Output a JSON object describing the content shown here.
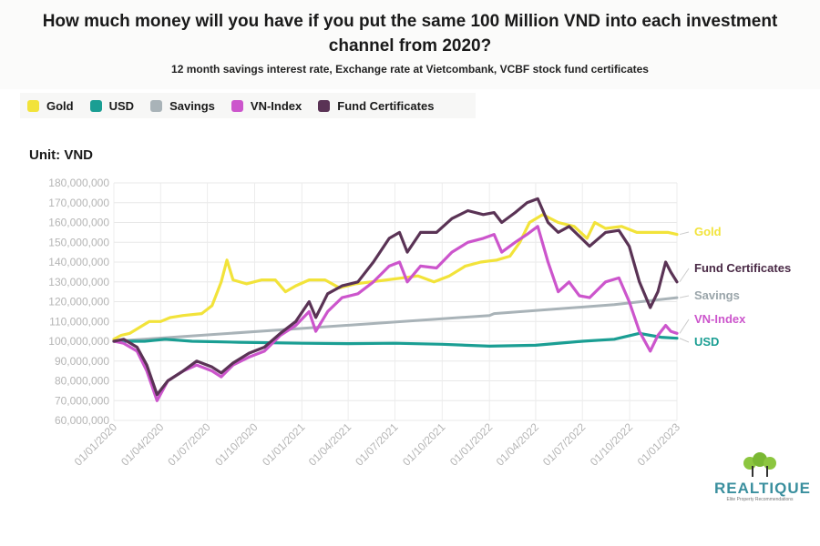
{
  "title": "How much money will you have if you put the same 100 Million VND into each investment channel from 2020?",
  "subtitle": "12 month savings interest rate, Exchange rate at Vietcombank, VCBF stock fund certificates",
  "unit_label": "Unit: VND",
  "logo": {
    "name": "REALTIQUE",
    "tagline": "Elite Property Recommendations"
  },
  "colors": {
    "gold": "#f2e33a",
    "usd": "#1a9e93",
    "savings": "#a9b3b8",
    "vnindex": "#cc55cc",
    "fund": "#5a3355"
  },
  "chart_data": {
    "type": "line",
    "title": "How much money will you have if you put the same 100 Million VND into each investment channel from 2020?",
    "ylabel": "Unit: VND",
    "ylim": [
      60000000,
      180000000
    ],
    "xlim": [
      "2020-01-01",
      "2023-01-01"
    ],
    "yticks": [
      {
        "value": 60000000,
        "label": "60,000,000"
      },
      {
        "value": 70000000,
        "label": "70,000,000"
      },
      {
        "value": 80000000,
        "label": "80,000,000"
      },
      {
        "value": 90000000,
        "label": "90,000,000"
      },
      {
        "value": 100000000,
        "label": "100,000,000"
      },
      {
        "value": 110000000,
        "label": "110,000,000"
      },
      {
        "value": 120000000,
        "label": "120,000,000"
      },
      {
        "value": 130000000,
        "label": "130,000,000"
      },
      {
        "value": 140000000,
        "label": "140,000,000"
      },
      {
        "value": 150000000,
        "label": "150,000,000"
      },
      {
        "value": 160000000,
        "label": "160,000,000"
      },
      {
        "value": 170000000,
        "label": "170,000,000"
      },
      {
        "value": 180000000,
        "label": "180,000,000"
      }
    ],
    "xticks": [
      {
        "value": "2020-01-01",
        "label": "01/01/2020"
      },
      {
        "value": "2020-04-01",
        "label": "01/04/2020"
      },
      {
        "value": "2020-07-01",
        "label": "01/07/2020"
      },
      {
        "value": "2020-10-01",
        "label": "01/10/2020"
      },
      {
        "value": "2021-01-01",
        "label": "01/01/2021"
      },
      {
        "value": "2021-04-01",
        "label": "01/04/2021"
      },
      {
        "value": "2021-07-01",
        "label": "01/07/2021"
      },
      {
        "value": "2021-10-01",
        "label": "01/10/2021"
      },
      {
        "value": "2022-01-01",
        "label": "01/01/2022"
      },
      {
        "value": "2022-04-01",
        "label": "01/04/2022"
      },
      {
        "value": "2022-07-01",
        "label": "01/07/2022"
      },
      {
        "value": "2022-10-01",
        "label": "01/10/2022"
      },
      {
        "value": "2023-01-01",
        "label": "01/01/2023"
      }
    ],
    "grid": true,
    "legend_position": "top-left",
    "series": [
      {
        "key": "gold",
        "name": "Gold",
        "color": "#f2e33a",
        "end_label": "Gold",
        "points": [
          [
            "2020-01-01",
            101000000
          ],
          [
            "2020-01-15",
            103000000
          ],
          [
            "2020-02-01",
            104000000
          ],
          [
            "2020-02-20",
            107000000
          ],
          [
            "2020-03-10",
            110000000
          ],
          [
            "2020-04-01",
            110000000
          ],
          [
            "2020-04-20",
            112000000
          ],
          [
            "2020-05-15",
            113000000
          ],
          [
            "2020-06-20",
            114000000
          ],
          [
            "2020-07-10",
            118000000
          ],
          [
            "2020-07-28",
            130000000
          ],
          [
            "2020-08-08",
            141000000
          ],
          [
            "2020-08-20",
            131000000
          ],
          [
            "2020-09-15",
            129000000
          ],
          [
            "2020-10-15",
            131000000
          ],
          [
            "2020-11-10",
            131000000
          ],
          [
            "2020-11-30",
            125000000
          ],
          [
            "2020-12-20",
            128000000
          ],
          [
            "2021-01-15",
            131000000
          ],
          [
            "2021-02-15",
            131000000
          ],
          [
            "2021-03-15",
            127000000
          ],
          [
            "2021-04-15",
            129000000
          ],
          [
            "2021-05-15",
            130000000
          ],
          [
            "2021-06-15",
            131000000
          ],
          [
            "2021-07-15",
            132000000
          ],
          [
            "2021-08-15",
            133000000
          ],
          [
            "2021-09-15",
            130000000
          ],
          [
            "2021-10-15",
            133000000
          ],
          [
            "2021-11-15",
            138000000
          ],
          [
            "2021-12-15",
            140000000
          ],
          [
            "2022-01-15",
            141000000
          ],
          [
            "2022-02-10",
            143000000
          ],
          [
            "2022-03-01",
            150000000
          ],
          [
            "2022-03-20",
            160000000
          ],
          [
            "2022-04-15",
            164000000
          ],
          [
            "2022-05-15",
            160000000
          ],
          [
            "2022-06-15",
            158000000
          ],
          [
            "2022-07-10",
            152000000
          ],
          [
            "2022-07-25",
            160000000
          ],
          [
            "2022-08-15",
            157000000
          ],
          [
            "2022-09-15",
            158000000
          ],
          [
            "2022-10-15",
            155000000
          ],
          [
            "2022-11-15",
            155000000
          ],
          [
            "2022-12-15",
            155000000
          ],
          [
            "2023-01-01",
            154000000
          ]
        ]
      },
      {
        "key": "usd",
        "name": "USD",
        "color": "#1a9e93",
        "end_label": "USD",
        "points": [
          [
            "2020-01-01",
            100000000
          ],
          [
            "2020-03-01",
            100000000
          ],
          [
            "2020-04-10",
            101000000
          ],
          [
            "2020-06-01",
            100000000
          ],
          [
            "2020-09-01",
            99500000
          ],
          [
            "2021-01-01",
            99000000
          ],
          [
            "2021-04-01",
            98800000
          ],
          [
            "2021-07-01",
            99000000
          ],
          [
            "2021-10-01",
            98500000
          ],
          [
            "2022-01-01",
            97500000
          ],
          [
            "2022-04-01",
            98000000
          ],
          [
            "2022-07-01",
            100000000
          ],
          [
            "2022-09-01",
            101000000
          ],
          [
            "2022-10-20",
            104000000
          ],
          [
            "2022-11-10",
            103000000
          ],
          [
            "2022-12-01",
            102000000
          ],
          [
            "2023-01-01",
            101500000
          ]
        ]
      },
      {
        "key": "savings",
        "name": "Savings",
        "color": "#a9b3b8",
        "end_label": "Savings",
        "points": [
          [
            "2020-01-01",
            100000000
          ],
          [
            "2021-01-01",
            106500000
          ],
          [
            "2022-01-01",
            113000000
          ],
          [
            "2022-01-10",
            114000000
          ],
          [
            "2022-09-01",
            118500000
          ],
          [
            "2023-01-01",
            122000000
          ]
        ]
      },
      {
        "key": "vnindex",
        "name": "VN-Index",
        "color": "#cc55cc",
        "end_label": "VN-Index",
        "points": [
          [
            "2020-01-01",
            100000000
          ],
          [
            "2020-01-20",
            99000000
          ],
          [
            "2020-02-15",
            95000000
          ],
          [
            "2020-03-05",
            85000000
          ],
          [
            "2020-03-25",
            70000000
          ],
          [
            "2020-04-15",
            80000000
          ],
          [
            "2020-05-15",
            85000000
          ],
          [
            "2020-06-10",
            88000000
          ],
          [
            "2020-07-10",
            85000000
          ],
          [
            "2020-07-28",
            82000000
          ],
          [
            "2020-08-20",
            88000000
          ],
          [
            "2020-09-20",
            92000000
          ],
          [
            "2020-10-20",
            95000000
          ],
          [
            "2020-11-20",
            103000000
          ],
          [
            "2020-12-20",
            108000000
          ],
          [
            "2021-01-15",
            115000000
          ],
          [
            "2021-01-28",
            105000000
          ],
          [
            "2021-02-20",
            115000000
          ],
          [
            "2021-03-20",
            122000000
          ],
          [
            "2021-04-20",
            124000000
          ],
          [
            "2021-05-20",
            130000000
          ],
          [
            "2021-06-20",
            138000000
          ],
          [
            "2021-07-10",
            140000000
          ],
          [
            "2021-07-25",
            130000000
          ],
          [
            "2021-08-20",
            138000000
          ],
          [
            "2021-09-20",
            137000000
          ],
          [
            "2021-10-20",
            145000000
          ],
          [
            "2021-11-20",
            150000000
          ],
          [
            "2021-12-20",
            152000000
          ],
          [
            "2022-01-10",
            154000000
          ],
          [
            "2022-01-25",
            145000000
          ],
          [
            "2022-02-20",
            150000000
          ],
          [
            "2022-03-15",
            154000000
          ],
          [
            "2022-04-05",
            158000000
          ],
          [
            "2022-04-25",
            140000000
          ],
          [
            "2022-05-15",
            125000000
          ],
          [
            "2022-06-05",
            130000000
          ],
          [
            "2022-06-25",
            123000000
          ],
          [
            "2022-07-15",
            122000000
          ],
          [
            "2022-08-15",
            130000000
          ],
          [
            "2022-09-10",
            132000000
          ],
          [
            "2022-09-30",
            120000000
          ],
          [
            "2022-10-20",
            105000000
          ],
          [
            "2022-11-10",
            95000000
          ],
          [
            "2022-11-25",
            103000000
          ],
          [
            "2022-12-10",
            108000000
          ],
          [
            "2022-12-20",
            105000000
          ],
          [
            "2023-01-01",
            104000000
          ]
        ]
      },
      {
        "key": "fund",
        "name": "Fund Certificates",
        "color": "#5a3355",
        "end_label": "Fund Certificates",
        "points": [
          [
            "2020-01-01",
            100000000
          ],
          [
            "2020-01-20",
            101000000
          ],
          [
            "2020-02-15",
            97000000
          ],
          [
            "2020-03-05",
            88000000
          ],
          [
            "2020-03-25",
            73000000
          ],
          [
            "2020-04-15",
            80000000
          ],
          [
            "2020-05-15",
            85000000
          ],
          [
            "2020-06-10",
            90000000
          ],
          [
            "2020-07-10",
            87000000
          ],
          [
            "2020-07-28",
            84000000
          ],
          [
            "2020-08-20",
            89000000
          ],
          [
            "2020-09-20",
            94000000
          ],
          [
            "2020-10-20",
            97000000
          ],
          [
            "2020-11-20",
            104000000
          ],
          [
            "2020-12-20",
            110000000
          ],
          [
            "2021-01-15",
            120000000
          ],
          [
            "2021-01-28",
            112000000
          ],
          [
            "2021-02-20",
            124000000
          ],
          [
            "2021-03-20",
            128000000
          ],
          [
            "2021-04-20",
            130000000
          ],
          [
            "2021-05-20",
            140000000
          ],
          [
            "2021-06-20",
            152000000
          ],
          [
            "2021-07-10",
            155000000
          ],
          [
            "2021-07-25",
            145000000
          ],
          [
            "2021-08-20",
            155000000
          ],
          [
            "2021-09-20",
            155000000
          ],
          [
            "2021-10-20",
            162000000
          ],
          [
            "2021-11-20",
            166000000
          ],
          [
            "2021-12-20",
            164000000
          ],
          [
            "2022-01-10",
            165000000
          ],
          [
            "2022-01-25",
            160000000
          ],
          [
            "2022-02-20",
            165000000
          ],
          [
            "2022-03-15",
            170000000
          ],
          [
            "2022-04-05",
            172000000
          ],
          [
            "2022-04-25",
            160000000
          ],
          [
            "2022-05-15",
            155000000
          ],
          [
            "2022-06-05",
            158000000
          ],
          [
            "2022-06-25",
            153000000
          ],
          [
            "2022-07-15",
            148000000
          ],
          [
            "2022-08-15",
            155000000
          ],
          [
            "2022-09-10",
            156000000
          ],
          [
            "2022-09-30",
            148000000
          ],
          [
            "2022-10-20",
            130000000
          ],
          [
            "2022-11-10",
            117000000
          ],
          [
            "2022-11-25",
            125000000
          ],
          [
            "2022-12-10",
            140000000
          ],
          [
            "2022-12-20",
            135000000
          ],
          [
            "2023-01-01",
            130000000
          ]
        ]
      }
    ]
  }
}
